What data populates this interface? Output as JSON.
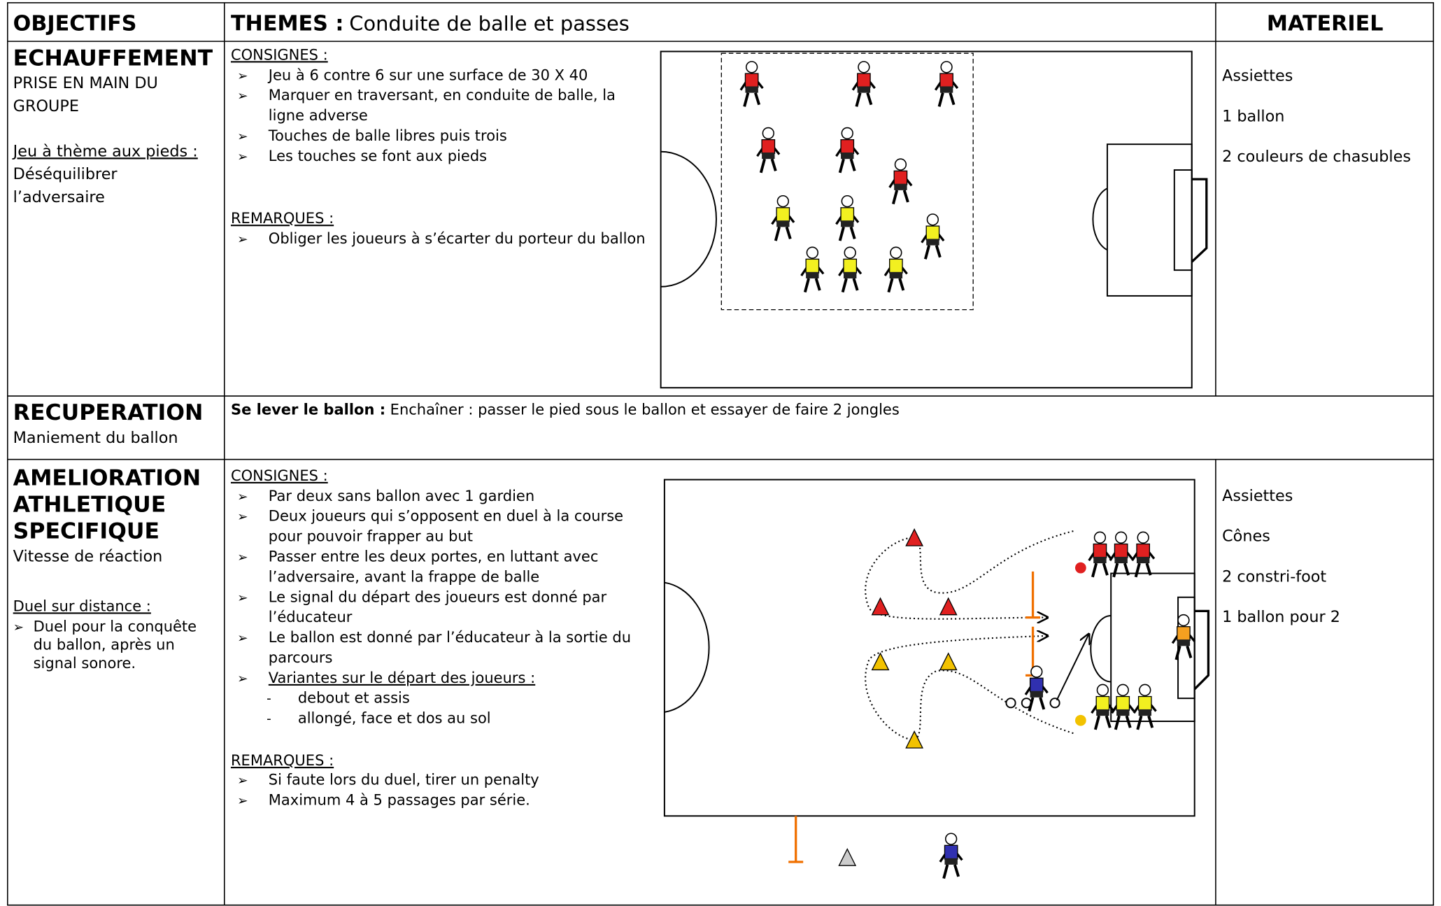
{
  "header": {
    "objectives": "OBJECTIFS",
    "themes_label": "THEMES :",
    "themes": "Conduite de balle et passes",
    "material": "MATERIEL"
  },
  "sections": [
    {
      "title": [
        "ECHAUFFEMENT"
      ],
      "subtitle": [
        "PRISE EN MAIN DU",
        "GROUPE"
      ],
      "theme_label": "Jeu à thème aux pieds :",
      "theme": [
        "Déséquilibrer",
        "l’adversaire"
      ],
      "consignes_label": "CONSIGNES :",
      "consignes": [
        [
          "Jeu à 6 contre 6 sur une surface de 30 X 40"
        ],
        [
          "Marquer en traversant, en conduite de balle, la",
          "ligne adverse"
        ],
        [
          "Touches de balle libres puis trois"
        ],
        [
          "Les touches se font aux pieds"
        ]
      ],
      "remarques_label": "REMARQUES :",
      "remarques": [
        [
          "Obliger les joueurs à s’écarter du porteur du ballon"
        ]
      ],
      "material": [
        "Assiettes",
        "1 ballon",
        "2 couleurs de chasubles"
      ]
    },
    {
      "title": [
        "RECUPERATION"
      ],
      "subtitle": [
        "Maniement du ballon"
      ],
      "text_label": "Se lever le ballon :",
      "text": "Enchaîner : passer le pied sous le ballon et essayer de faire 2 jongles"
    },
    {
      "title": [
        "AMELIORATION",
        "ATHLETIQUE",
        "SPECIFIQUE"
      ],
      "subtitle": [
        "Vitesse de réaction"
      ],
      "theme_label": "Duel sur distance :",
      "theme": [
        "Duel pour la conquête",
        "du ballon, après un",
        "signal sonore."
      ],
      "consignes_label": "CONSIGNES :",
      "consignes": [
        [
          "Par deux sans ballon avec 1 gardien"
        ],
        [
          "Deux joueurs qui s’opposent en duel à la course",
          "pour pouvoir frapper au but"
        ],
        [
          "Passer entre les deux portes, en luttant avec",
          "l’adversaire, avant la frappe de balle"
        ],
        [
          "Le signal du départ des joueurs est donné par",
          "l’éducateur"
        ],
        [
          "Le ballon est donné par l’éducateur à la sortie du",
          "parcours"
        ]
      ],
      "variants_label": "Variantes sur le départ des joueurs :",
      "variants": [
        "debout et assis",
        "allongé, face et dos au sol"
      ],
      "remarques_label": "REMARQUES :",
      "remarques": [
        [
          "Si faute lors du duel, tirer un penalty"
        ],
        [
          "Maximum 4 à 5 passages par série."
        ]
      ],
      "material": [
        "Assiettes",
        "Cônes",
        "2 constri-foot",
        "1 ballon pour 2"
      ]
    }
  ]
}
